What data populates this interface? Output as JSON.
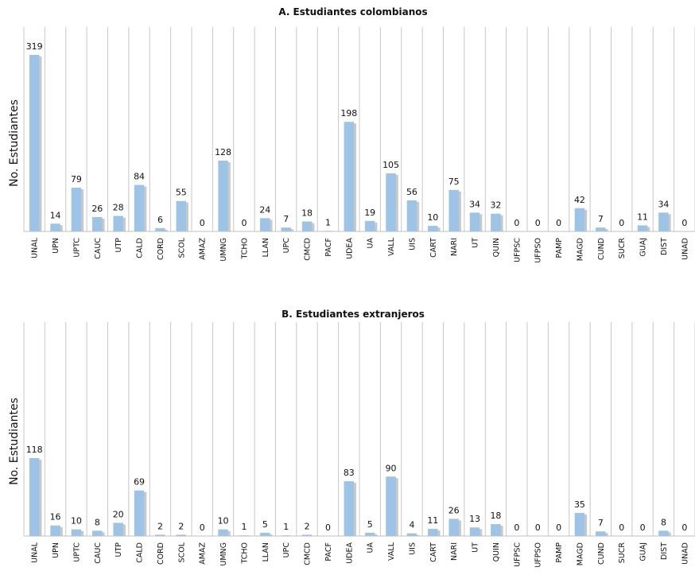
{
  "chart_data": [
    {
      "type": "bar",
      "title": "A. Estudiantes colombianos",
      "xlabel": "",
      "ylabel": "No. Estudiantes",
      "ylim": [
        0,
        319
      ],
      "grid": "vertical",
      "categories": [
        "UNAL",
        "UPN",
        "UPTC",
        "CAUC",
        "UTP",
        "CALD",
        "CORD",
        "SCOL",
        "AMAZ",
        "UMNG",
        "TCHO",
        "LLAN",
        "UPC",
        "CMCD",
        "PACF",
        "UDEA",
        "UA",
        "VALL",
        "UIS",
        "CART",
        "NARI",
        "UT",
        "QUIN",
        "UFPSC",
        "UFPSO",
        "PAMP",
        "MAGD",
        "CUND",
        "SUCR",
        "GUAJ",
        "DIST",
        "UNAD"
      ],
      "values": [
        319,
        14,
        79,
        26,
        28,
        84,
        6,
        55,
        0,
        128,
        0,
        24,
        7,
        18,
        1,
        198,
        19,
        105,
        56,
        10,
        75,
        34,
        32,
        0,
        0,
        0,
        42,
        7,
        0,
        11,
        34,
        0
      ],
      "bar_color": "#9dc3e6"
    },
    {
      "type": "bar",
      "title": "B. Estudiantes extranjeros",
      "xlabel": "",
      "ylabel": "No. Estudiantes",
      "ylim": [
        0,
        118
      ],
      "grid": "vertical",
      "categories": [
        "UNAL",
        "UPN",
        "UPTC",
        "CAUC",
        "UTP",
        "CALD",
        "CORD",
        "SCOL",
        "AMAZ",
        "UMNG",
        "TCHO",
        "LLAN",
        "UPC",
        "CMCD",
        "PACF",
        "UDEA",
        "UA",
        "VALL",
        "UIS",
        "CART",
        "NARI",
        "UT",
        "QUIN",
        "UFPSC",
        "UFPSO",
        "PAMP",
        "MAGD",
        "CUND",
        "SUCR",
        "GUAJ",
        "DIST",
        "UNAD"
      ],
      "values": [
        118,
        16,
        10,
        8,
        20,
        69,
        2,
        2,
        0,
        10,
        1,
        5,
        1,
        2,
        0,
        83,
        5,
        90,
        4,
        11,
        26,
        13,
        18,
        0,
        0,
        0,
        35,
        7,
        0,
        0,
        8,
        0
      ],
      "bar_color": "#9dc3e6"
    }
  ]
}
